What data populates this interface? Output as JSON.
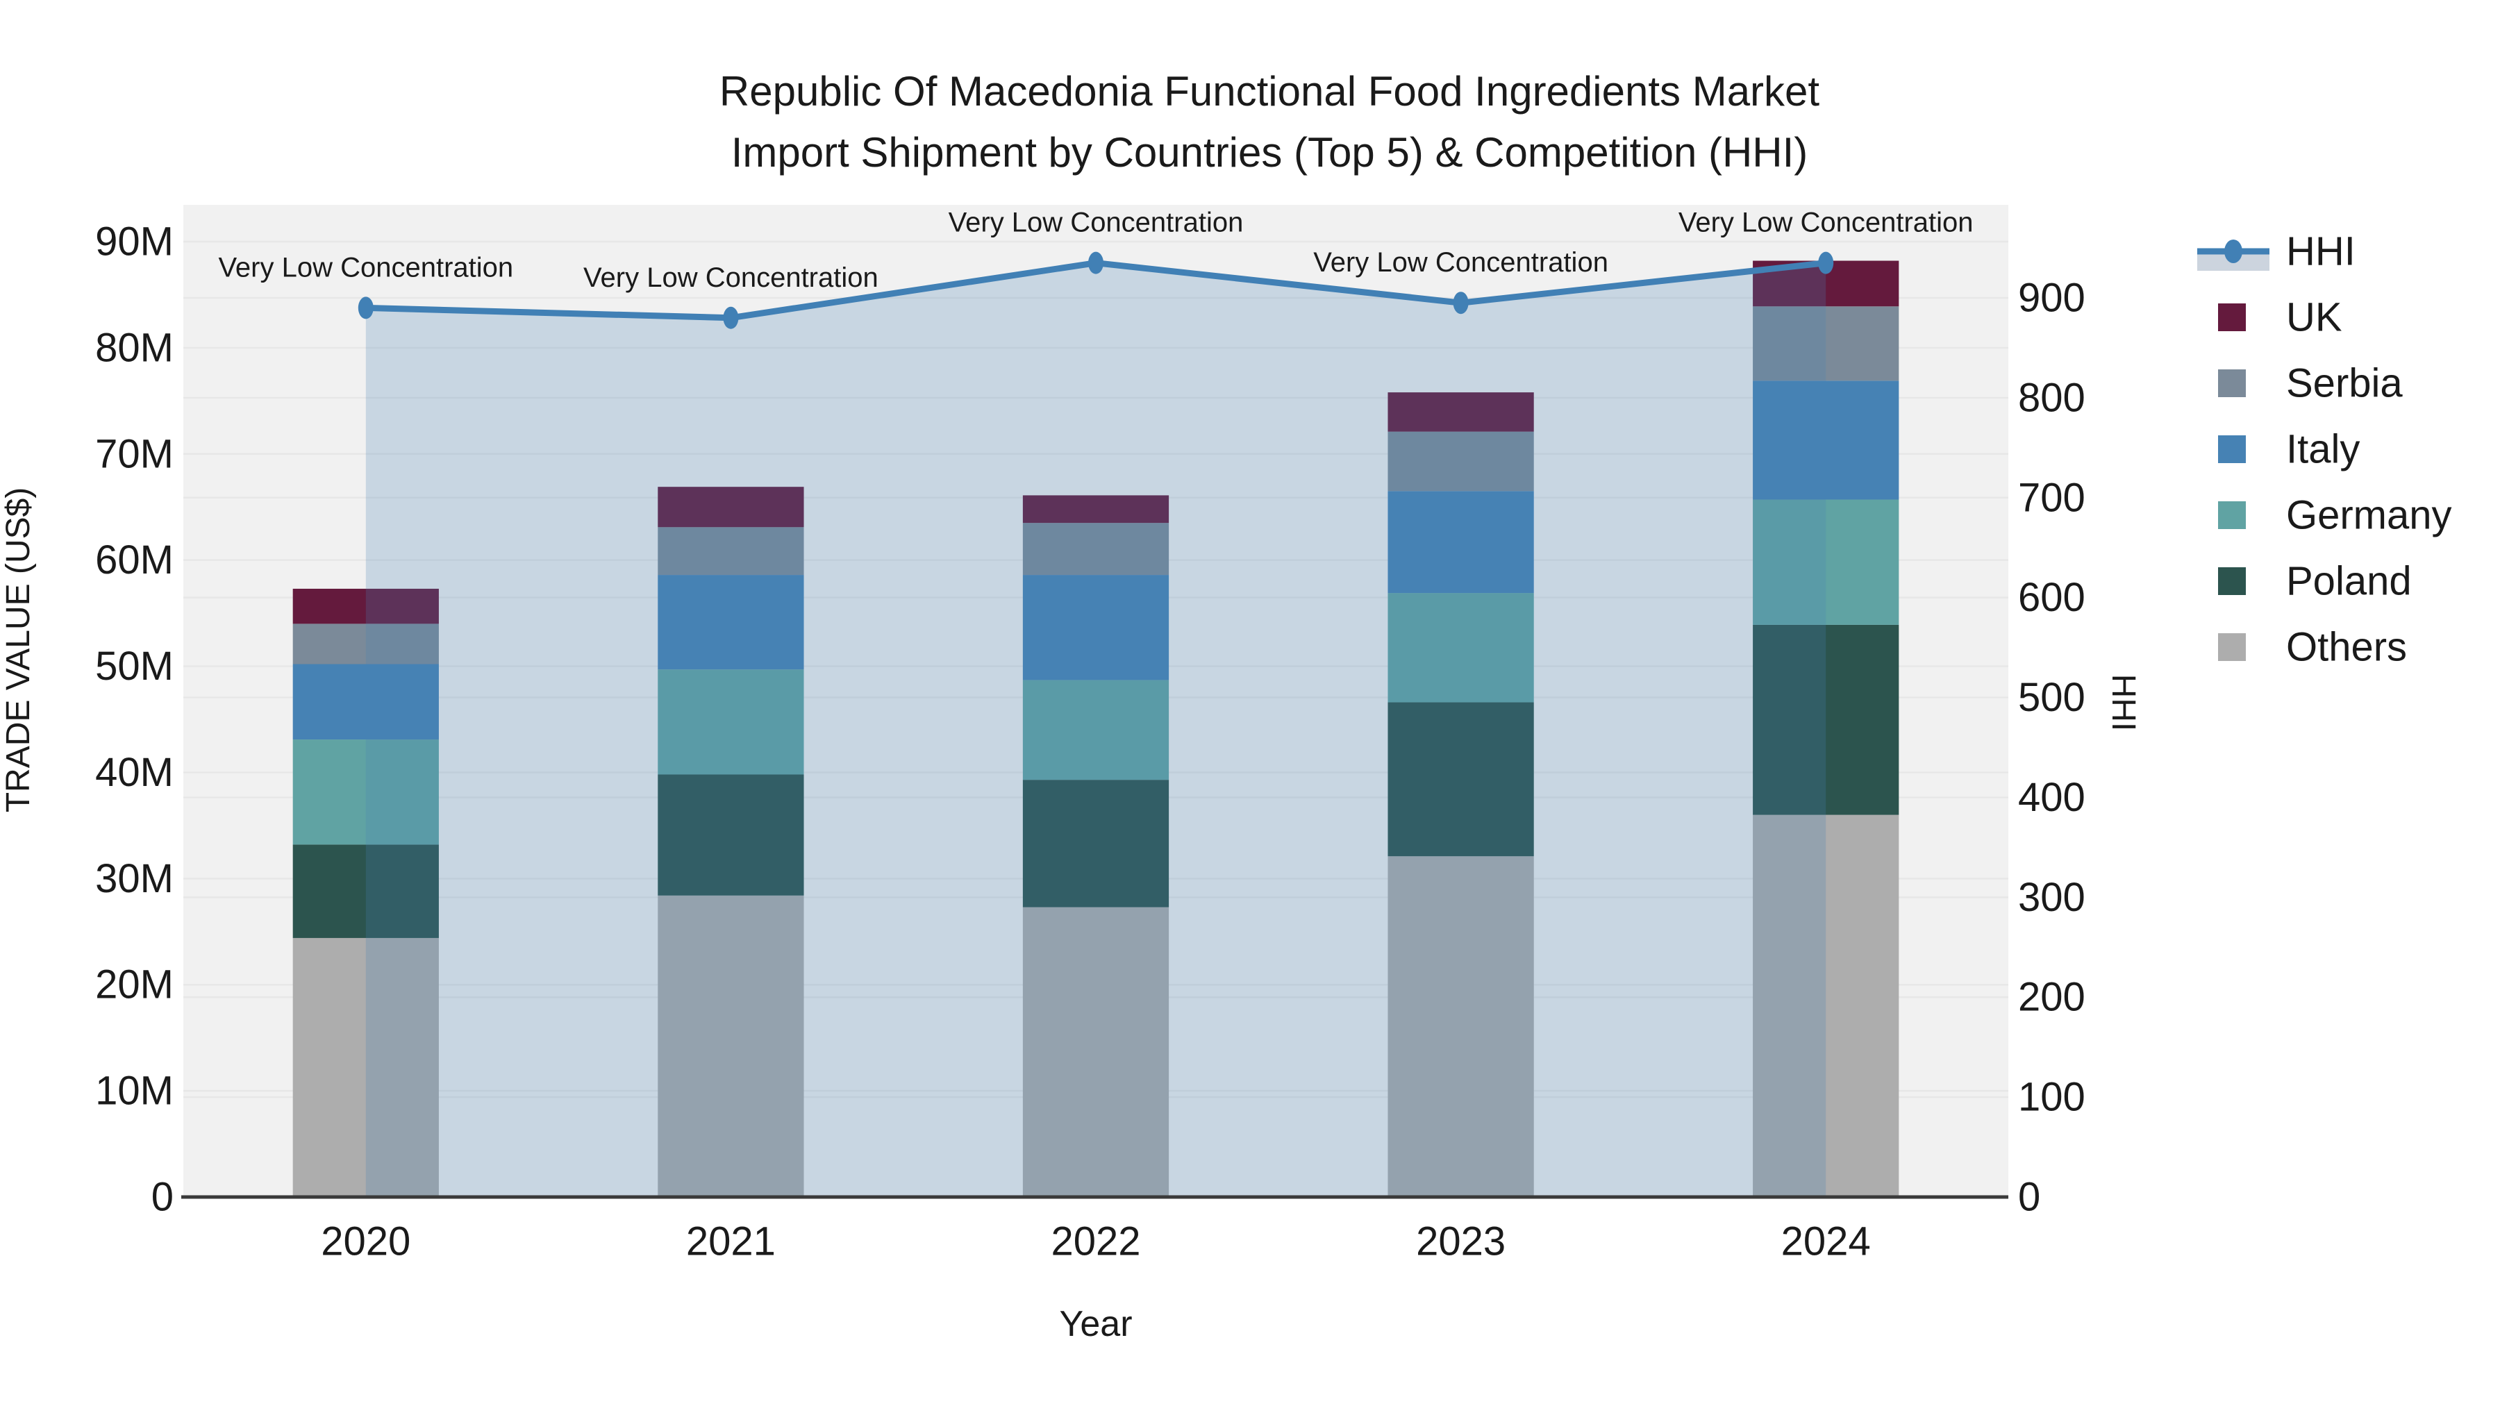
{
  "title": {
    "line1": "Republic Of Macedonia Functional Food Ingredients Market",
    "line2": "Import Shipment by Countries (Top 5) & Competition (HHI)"
  },
  "axes": {
    "x_title": "Year",
    "y_left_title": "TRADE VALUE (US$)",
    "y_right_title": "HHI",
    "x_ticks": [
      "2020",
      "2021",
      "2022",
      "2023",
      "2024"
    ],
    "y_left_ticks": [
      "0",
      "10M",
      "20M",
      "30M",
      "40M",
      "50M",
      "60M",
      "70M",
      "80M",
      "90M"
    ],
    "y_right_ticks": [
      "0",
      "100",
      "200",
      "300",
      "400",
      "500",
      "600",
      "700",
      "800",
      "900"
    ]
  },
  "legend": {
    "items": [
      {
        "label": "HHI",
        "type": "line",
        "color": "#4180b5"
      },
      {
        "label": "UK",
        "type": "swatch",
        "color": "#641a3d"
      },
      {
        "label": "Serbia",
        "type": "swatch",
        "color": "#7b8a99"
      },
      {
        "label": "Italy",
        "type": "swatch",
        "color": "#4682b4"
      },
      {
        "label": "Germany",
        "type": "swatch",
        "color": "#60a3a3"
      },
      {
        "label": "Poland",
        "type": "swatch",
        "color": "#2c544e"
      },
      {
        "label": "Others",
        "type": "swatch",
        "color": "#adadad"
      }
    ]
  },
  "chart_data": {
    "type": "bar",
    "subtype": "stacked-bars-with-overlaid-line",
    "title": "Republic Of Macedonia Functional Food Ingredients Market Import Shipment by Countries (Top 5) & Competition (HHI)",
    "xlabel": "Year",
    "ylabel_left": "TRADE VALUE (US$)",
    "ylabel_right": "HHI",
    "categories": [
      "2020",
      "2021",
      "2022",
      "2023",
      "2024"
    ],
    "value_unit": "Million US$",
    "series": [
      {
        "name": "UK",
        "color": "#641a3d",
        "values": [
          3.3,
          3.8,
          2.6,
          3.7,
          4.3
        ]
      },
      {
        "name": "Serbia",
        "color": "#7b8a99",
        "values": [
          3.8,
          4.5,
          4.9,
          5.6,
          7.0
        ]
      },
      {
        "name": "Italy",
        "color": "#4682b4",
        "values": [
          7.1,
          8.9,
          9.9,
          9.6,
          11.2
        ]
      },
      {
        "name": "Germany",
        "color": "#60a3a3",
        "values": [
          9.9,
          9.9,
          9.4,
          10.3,
          11.8
        ]
      },
      {
        "name": "Poland",
        "color": "#2c544e",
        "values": [
          8.8,
          11.4,
          12.0,
          14.5,
          17.9
        ]
      },
      {
        "name": "Others",
        "color": "#adadad",
        "values": [
          24.4,
          28.4,
          27.3,
          32.1,
          36.0
        ]
      }
    ],
    "stack_order_bottom_to_top": [
      "Others",
      "Poland",
      "Germany",
      "Italy",
      "Serbia",
      "UK"
    ],
    "totals": [
      57.3,
      66.9,
      66.1,
      75.8,
      88.2
    ],
    "line_series": {
      "name": "HHI",
      "axis": "right",
      "color": "#4180b5",
      "area_fill": "rgba(70,130,180,0.24)",
      "values": [
        890,
        880,
        935,
        895,
        935
      ]
    },
    "annotations": [
      "Very Low Concentration",
      "Very Low Concentration",
      "Very Low Concentration",
      "Very Low Concentration",
      "Very Low Concentration"
    ],
    "y_left_axis": {
      "min": 0,
      "max": 93.5,
      "tick_step": 10,
      "tick_suffix": "M"
    },
    "y_right_axis": {
      "min": 0,
      "max": 993,
      "tick_step": 100
    },
    "legend_position": "right",
    "grid": "faint horizontal gridlines for both axes",
    "plot_background": "#f1f1f1"
  },
  "colors": {
    "background": "#ffffff",
    "plot_background": "#f1f1f1",
    "gridline": "#e7e7e7",
    "axis_line": "#3a3a3a",
    "text": "#1a1a1a",
    "hhi_line": "#4180b5",
    "area_fill_over_white": "#ccd4de"
  }
}
